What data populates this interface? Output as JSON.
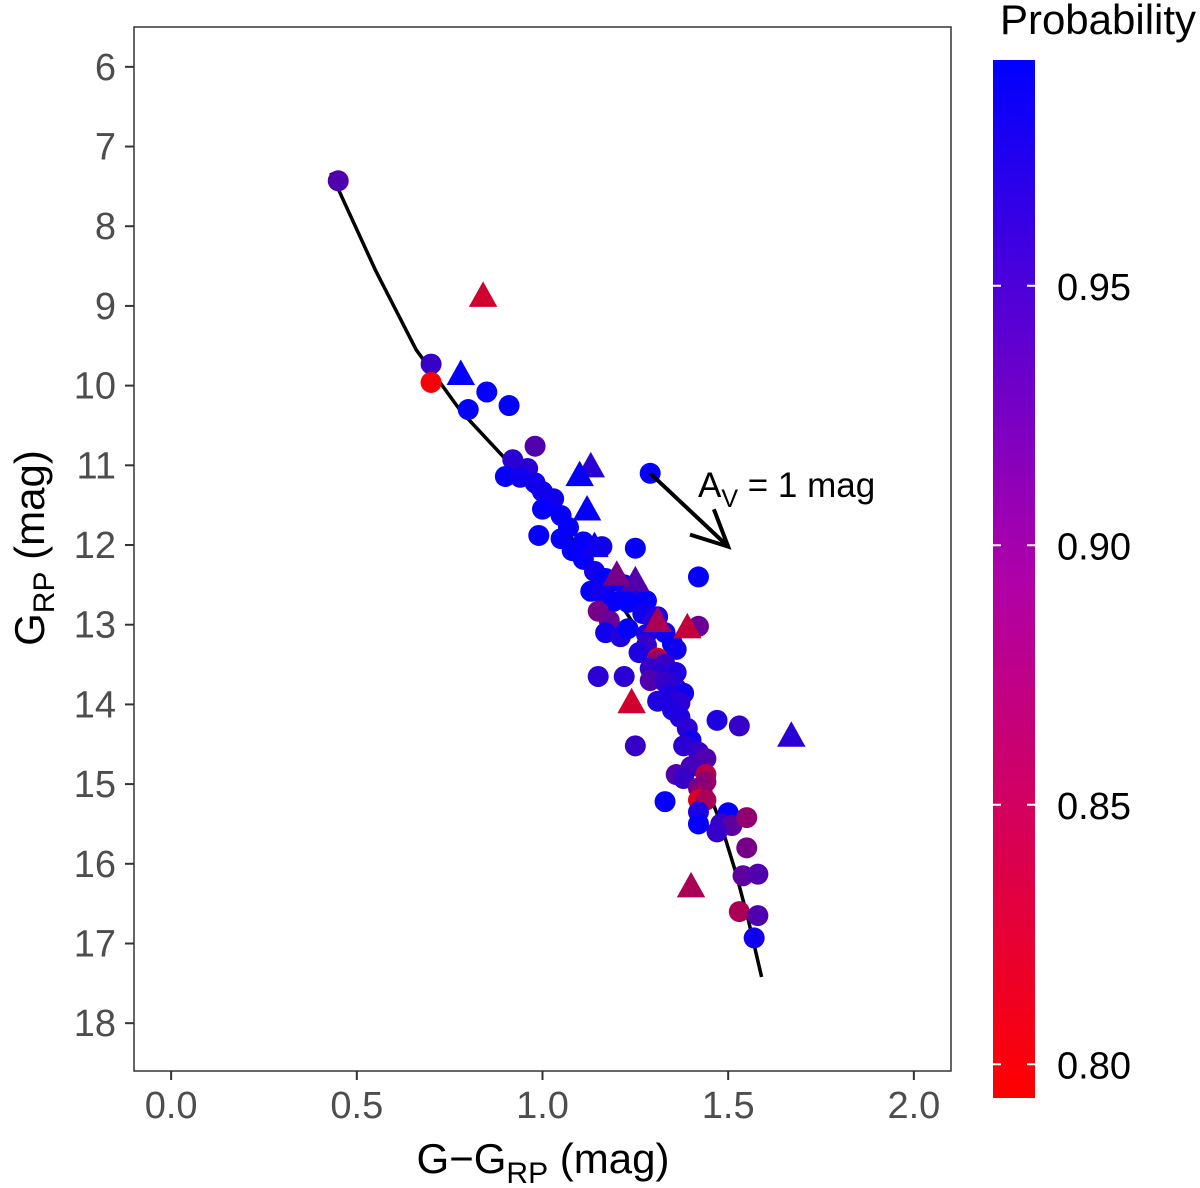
{
  "chart_data": {
    "type": "scatter",
    "xlabel": {
      "main": "G−G",
      "sub": "RP",
      "unit": " (mag)"
    },
    "ylabel": {
      "main": "G",
      "sub": "RP",
      "unit": " (mag)"
    },
    "xlim": [
      -0.1,
      2.1
    ],
    "ylim": [
      18.6,
      5.5
    ],
    "y_inverted": true,
    "xticks": [
      0.0,
      0.5,
      1.0,
      1.5,
      2.0
    ],
    "xtick_labels": [
      "0.0",
      "0.5",
      "1.0",
      "1.5",
      "2.0"
    ],
    "yticks": [
      6,
      7,
      8,
      9,
      10,
      11,
      12,
      13,
      14,
      15,
      16,
      17,
      18
    ],
    "ytick_labels": [
      "6",
      "7",
      "8",
      "9",
      "10",
      "11",
      "12",
      "13",
      "14",
      "15",
      "16",
      "17",
      "18"
    ],
    "grid": false,
    "colorbar": {
      "title": "Probability",
      "range": [
        0.7935,
        0.9935
      ],
      "ticks": [
        0.8,
        0.85,
        0.9,
        0.95
      ],
      "tick_labels": [
        "0.80",
        "0.85",
        "0.90",
        "0.95"
      ],
      "colors": [
        "#ff0000",
        "#0000ff"
      ]
    },
    "annotation": {
      "main": "A",
      "sub": "V",
      "rest": " = 1 mag",
      "arrow_from": [
        1.29,
        11.1
      ],
      "arrow_to": [
        1.5,
        12.02
      ]
    },
    "isochrone": [
      [
        0.43,
        7.33
      ],
      [
        0.55,
        8.55
      ],
      [
        0.66,
        9.55
      ],
      [
        0.78,
        10.32
      ],
      [
        0.9,
        10.92
      ],
      [
        1.0,
        11.48
      ],
      [
        1.09,
        11.98
      ],
      [
        1.17,
        12.46
      ],
      [
        1.24,
        12.95
      ],
      [
        1.3,
        13.48
      ],
      [
        1.35,
        13.97
      ],
      [
        1.4,
        14.48
      ],
      [
        1.44,
        15.0
      ],
      [
        1.48,
        15.5
      ],
      [
        1.52,
        16.1
      ],
      [
        1.555,
        16.72
      ],
      [
        1.59,
        17.42
      ]
    ],
    "series": [
      {
        "marker": "circle",
        "points": [
          [
            0.45,
            7.43,
            0.93
          ],
          [
            0.7,
            9.73,
            0.95
          ],
          [
            0.7,
            9.96,
            0.8
          ],
          [
            0.8,
            10.3,
            0.99
          ],
          [
            0.85,
            10.08,
            0.99
          ],
          [
            0.91,
            10.25,
            0.99
          ],
          [
            0.98,
            10.76,
            0.93
          ],
          [
            0.92,
            10.93,
            0.96
          ],
          [
            0.96,
            11.04,
            0.96
          ],
          [
            0.9,
            11.14,
            0.99
          ],
          [
            0.94,
            11.15,
            0.98
          ],
          [
            0.98,
            11.22,
            0.98
          ],
          [
            1.0,
            11.33,
            0.98
          ],
          [
            1.03,
            11.42,
            0.98
          ],
          [
            1.0,
            11.55,
            0.99
          ],
          [
            1.05,
            11.63,
            0.99
          ],
          [
            1.07,
            11.78,
            0.99
          ],
          [
            0.99,
            11.88,
            0.99
          ],
          [
            1.05,
            11.92,
            0.99
          ],
          [
            1.08,
            12.07,
            0.99
          ],
          [
            1.11,
            11.96,
            0.99
          ],
          [
            1.16,
            12.02,
            0.98
          ],
          [
            1.25,
            12.04,
            0.99
          ],
          [
            1.11,
            12.18,
            0.99
          ],
          [
            1.14,
            12.33,
            0.98
          ],
          [
            1.17,
            12.42,
            0.99
          ],
          [
            1.2,
            12.45,
            0.99
          ],
          [
            1.22,
            12.5,
            0.98
          ],
          [
            1.13,
            12.58,
            0.99
          ],
          [
            1.16,
            12.6,
            0.98
          ],
          [
            1.25,
            12.56,
            0.97
          ],
          [
            1.19,
            12.71,
            0.99
          ],
          [
            1.23,
            12.72,
            0.99
          ],
          [
            1.28,
            12.7,
            0.99
          ],
          [
            1.27,
            12.86,
            0.98
          ],
          [
            1.31,
            12.9,
            0.97
          ],
          [
            1.3,
            12.96,
            0.96
          ],
          [
            1.15,
            12.83,
            0.9
          ],
          [
            1.18,
            12.95,
            0.91
          ],
          [
            1.17,
            13.1,
            0.98
          ],
          [
            1.21,
            13.15,
            0.97
          ],
          [
            1.23,
            13.05,
            0.99
          ],
          [
            1.28,
            13.12,
            0.97
          ],
          [
            1.33,
            13.1,
            0.98
          ],
          [
            1.35,
            13.24,
            0.99
          ],
          [
            1.36,
            13.31,
            0.98
          ],
          [
            1.28,
            13.26,
            0.95
          ],
          [
            1.26,
            13.35,
            0.97
          ],
          [
            1.31,
            13.42,
            0.82
          ],
          [
            1.31,
            13.45,
            0.88
          ],
          [
            1.33,
            13.5,
            0.95
          ],
          [
            1.42,
            13.02,
            0.91
          ],
          [
            1.29,
            13.55,
            0.95
          ],
          [
            1.32,
            13.62,
            0.96
          ],
          [
            1.36,
            13.6,
            0.97
          ],
          [
            1.29,
            13.7,
            0.93
          ],
          [
            1.33,
            13.72,
            0.95
          ],
          [
            1.36,
            13.8,
            0.96
          ],
          [
            1.38,
            13.86,
            0.98
          ],
          [
            1.34,
            13.88,
            0.97
          ],
          [
            1.31,
            13.96,
            0.97
          ],
          [
            1.37,
            13.98,
            0.96
          ],
          [
            1.35,
            14.07,
            0.97
          ],
          [
            1.37,
            14.16,
            0.97
          ],
          [
            1.39,
            14.3,
            0.96
          ],
          [
            1.4,
            14.45,
            0.98
          ],
          [
            1.38,
            14.52,
            0.96
          ],
          [
            1.42,
            14.6,
            0.95
          ],
          [
            1.44,
            14.68,
            0.93
          ],
          [
            1.4,
            14.78,
            0.94
          ],
          [
            1.36,
            14.88,
            0.93
          ],
          [
            1.38,
            14.93,
            0.95
          ],
          [
            1.44,
            14.88,
            0.85
          ],
          [
            1.44,
            14.97,
            0.88
          ],
          [
            1.42,
            15.05,
            0.9
          ],
          [
            1.43,
            15.1,
            0.88
          ],
          [
            1.42,
            15.2,
            0.82
          ],
          [
            1.44,
            15.2,
            0.86
          ],
          [
            1.33,
            15.22,
            0.99
          ],
          [
            1.42,
            15.35,
            0.97
          ],
          [
            1.5,
            15.36,
            0.99
          ],
          [
            1.42,
            15.5,
            0.99
          ],
          [
            1.48,
            15.5,
            0.95
          ],
          [
            1.51,
            15.52,
            0.92
          ],
          [
            1.47,
            15.6,
            0.95
          ],
          [
            1.55,
            15.42,
            0.88
          ],
          [
            1.55,
            15.8,
            0.9
          ],
          [
            1.54,
            16.15,
            0.92
          ],
          [
            1.58,
            16.13,
            0.93
          ],
          [
            1.53,
            16.6,
            0.86
          ],
          [
            1.58,
            16.65,
            0.93
          ],
          [
            1.57,
            16.93,
            0.98
          ],
          [
            1.47,
            14.2,
            0.97
          ],
          [
            1.53,
            14.27,
            0.95
          ],
          [
            1.42,
            12.4,
            0.99
          ],
          [
            1.29,
            11.1,
            0.99
          ],
          [
            1.15,
            13.65,
            0.96
          ],
          [
            1.22,
            13.65,
            0.96
          ],
          [
            1.25,
            14.52,
            0.95
          ]
        ]
      },
      {
        "marker": "triangle",
        "points": [
          [
            0.84,
            8.88,
            0.83
          ],
          [
            0.78,
            9.86,
            0.99
          ],
          [
            1.13,
            11.02,
            0.96
          ],
          [
            1.1,
            11.13,
            0.99
          ],
          [
            1.12,
            11.56,
            0.99
          ],
          [
            1.14,
            12.02,
            0.98
          ],
          [
            1.25,
            12.45,
            0.93
          ],
          [
            1.2,
            12.38,
            0.9
          ],
          [
            1.31,
            12.96,
            0.86
          ],
          [
            1.39,
            13.04,
            0.84
          ],
          [
            1.24,
            13.98,
            0.83
          ],
          [
            1.4,
            16.29,
            0.86
          ],
          [
            1.67,
            14.4,
            0.96
          ]
        ]
      }
    ]
  }
}
